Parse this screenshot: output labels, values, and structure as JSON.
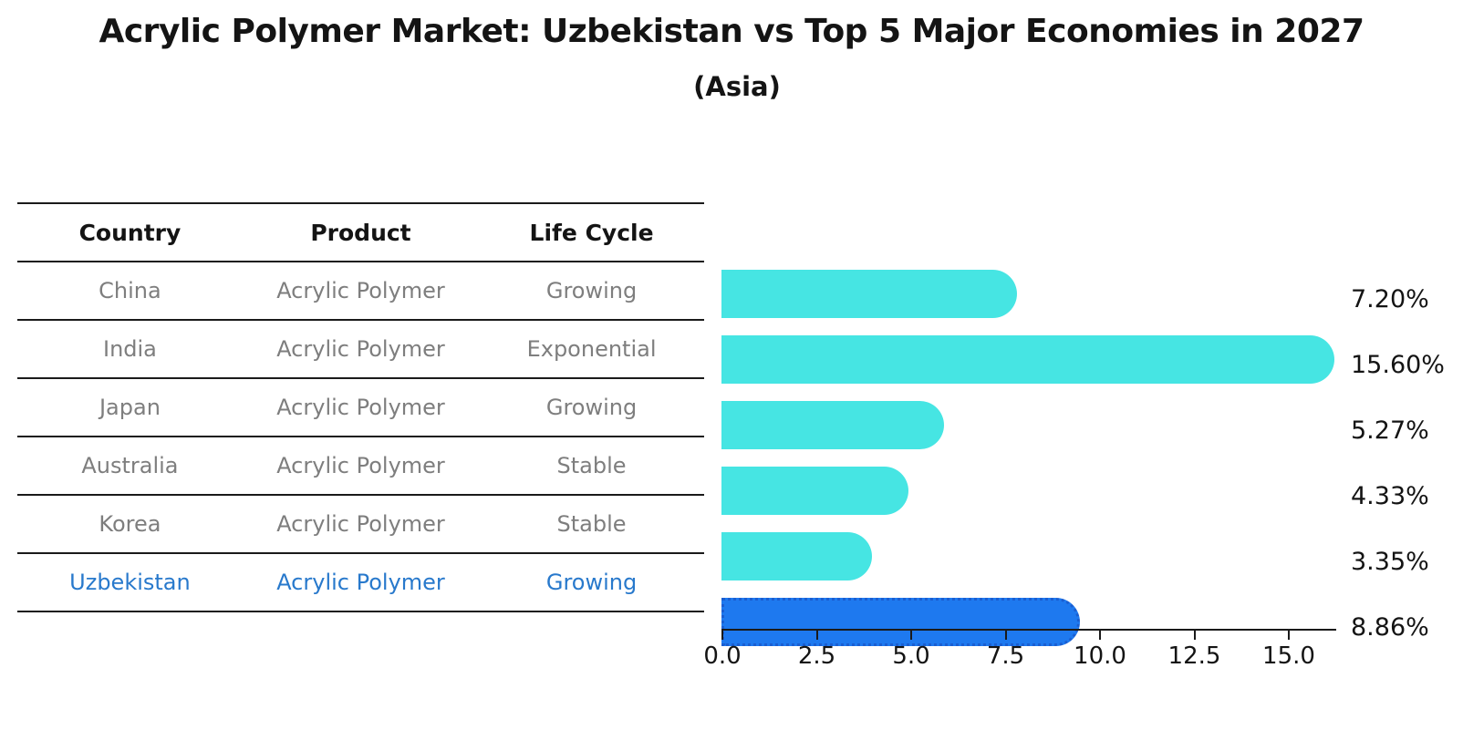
{
  "title": "Acrylic Polymer Market: Uzbekistan vs Top 5 Major Economies in 2027",
  "subtitle": "(Asia)",
  "table": {
    "headers": [
      "Country",
      "Product",
      "Life Cycle"
    ],
    "rows": [
      {
        "country": "China",
        "product": "Acrylic Polymer",
        "life_cycle": "Growing",
        "highlight": false
      },
      {
        "country": "India",
        "product": "Acrylic Polymer",
        "life_cycle": "Exponential",
        "highlight": false
      },
      {
        "country": "Japan",
        "product": "Acrylic Polymer",
        "life_cycle": "Growing",
        "highlight": false
      },
      {
        "country": "Australia",
        "product": "Acrylic Polymer",
        "life_cycle": "Stable",
        "highlight": false
      },
      {
        "country": "Korea",
        "product": "Acrylic Polymer",
        "life_cycle": "Stable",
        "highlight": false
      },
      {
        "country": "Uzbekistan",
        "product": "Acrylic Polymer",
        "life_cycle": "Growing",
        "highlight": true
      }
    ]
  },
  "chart_data": {
    "type": "bar",
    "orientation": "horizontal",
    "title": "Acrylic Polymer Market: Uzbekistan vs Top 5 Major Economies in 2027",
    "subtitle": "(Asia)",
    "categories": [
      "China",
      "India",
      "Japan",
      "Australia",
      "Korea",
      "Uzbekistan"
    ],
    "values": [
      7.2,
      15.6,
      5.27,
      4.33,
      3.35,
      8.86
    ],
    "value_labels": [
      "7.20%",
      "15.60%",
      "5.27%",
      "4.33%",
      "3.35%",
      "8.86%"
    ],
    "unit": "percent",
    "x_ticks": [
      "0.0",
      "2.5",
      "5.0",
      "7.5",
      "10.0",
      "12.5",
      "15.0"
    ],
    "x_tick_values": [
      0,
      2.5,
      5,
      7.5,
      10,
      12.5,
      15
    ],
    "xlim": [
      0,
      16.3
    ],
    "grid": false,
    "legend": null,
    "highlight_index": 5
  },
  "colors": {
    "ink": "#141414",
    "line": "#1a1a1a",
    "row_text": "#7e7e7e",
    "bar": "#46e5e3",
    "highlight_bar": "#1e79ef",
    "highlight_border": "#1a5ed1",
    "highlight_text": "#2879cc"
  }
}
